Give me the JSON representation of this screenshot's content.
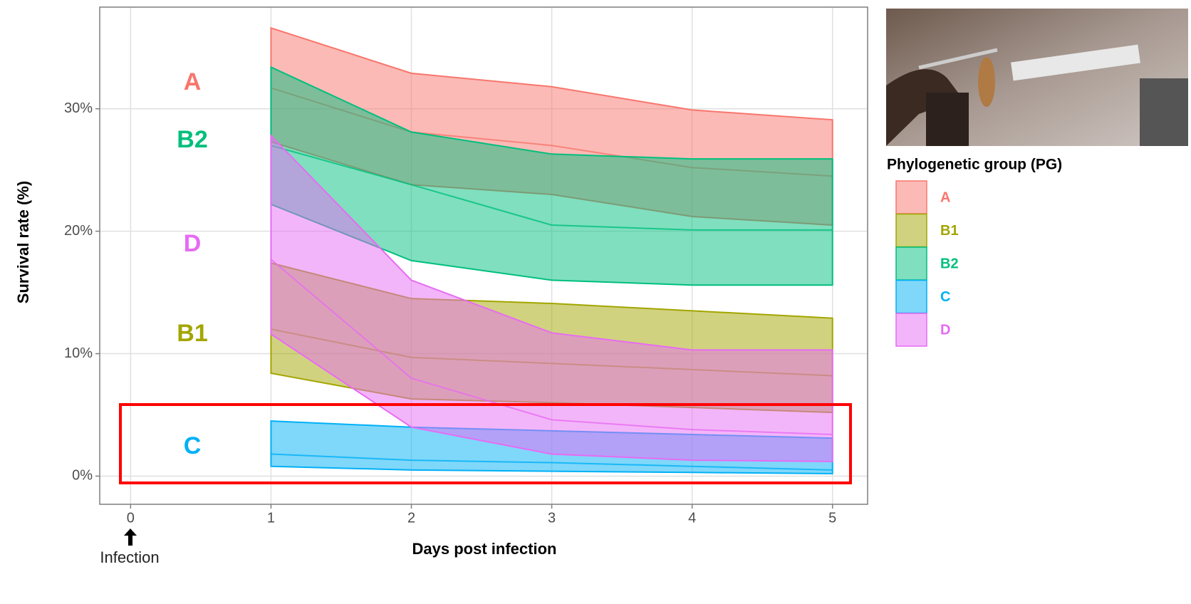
{
  "chart_data": {
    "type": "ribbon",
    "x_label": "Days post infection",
    "y_label": "Survival rate (%)",
    "legend_title": "Phylogenetic group (PG)",
    "annotation": "Infection",
    "x": [
      1,
      2,
      3,
      4,
      5
    ],
    "xlim": [
      -0.22,
      5.25
    ],
    "xticks": [
      0,
      1,
      2,
      3,
      4,
      5
    ],
    "ylim": [
      -2.3,
      38.3
    ],
    "yticks": [
      {
        "value": 0,
        "label": "0%"
      },
      {
        "value": 10,
        "label": "10%"
      },
      {
        "value": 20,
        "label": "20%"
      },
      {
        "value": 30,
        "label": "30%"
      }
    ],
    "grid": true,
    "series": [
      {
        "name": "A",
        "color": "#f8766d",
        "upper": [
          36.6,
          32.9,
          31.8,
          29.9,
          29.1
        ],
        "median": [
          31.7,
          28.1,
          27.0,
          25.2,
          24.5
        ],
        "lower": [
          27.3,
          23.8,
          23.0,
          21.2,
          20.5
        ]
      },
      {
        "name": "B1",
        "color": "#a3a500",
        "upper": [
          17.4,
          14.5,
          14.1,
          13.5,
          12.9
        ],
        "median": [
          12.0,
          9.7,
          9.2,
          8.7,
          8.2
        ],
        "lower": [
          8.4,
          6.3,
          6.0,
          5.6,
          5.2
        ]
      },
      {
        "name": "B2",
        "color": "#00bf7d",
        "upper": [
          33.4,
          28.1,
          26.3,
          25.9,
          25.9
        ],
        "median": [
          27.0,
          23.8,
          20.5,
          20.1,
          20.1
        ],
        "lower": [
          22.2,
          17.6,
          16.0,
          15.6,
          15.6
        ]
      },
      {
        "name": "C",
        "color": "#00b0f6",
        "upper": [
          4.5,
          4.0,
          3.7,
          3.4,
          3.1
        ],
        "median": [
          1.8,
          1.3,
          1.1,
          0.8,
          0.5
        ],
        "lower": [
          0.8,
          0.5,
          0.4,
          0.3,
          0.2
        ]
      },
      {
        "name": "D",
        "color": "#e76bf3",
        "upper": [
          27.8,
          16.0,
          11.7,
          10.3,
          10.3
        ],
        "median": [
          17.7,
          8.0,
          4.6,
          3.8,
          3.4
        ],
        "lower": [
          11.6,
          4.0,
          1.8,
          1.3,
          1.2
        ]
      }
    ]
  }
}
